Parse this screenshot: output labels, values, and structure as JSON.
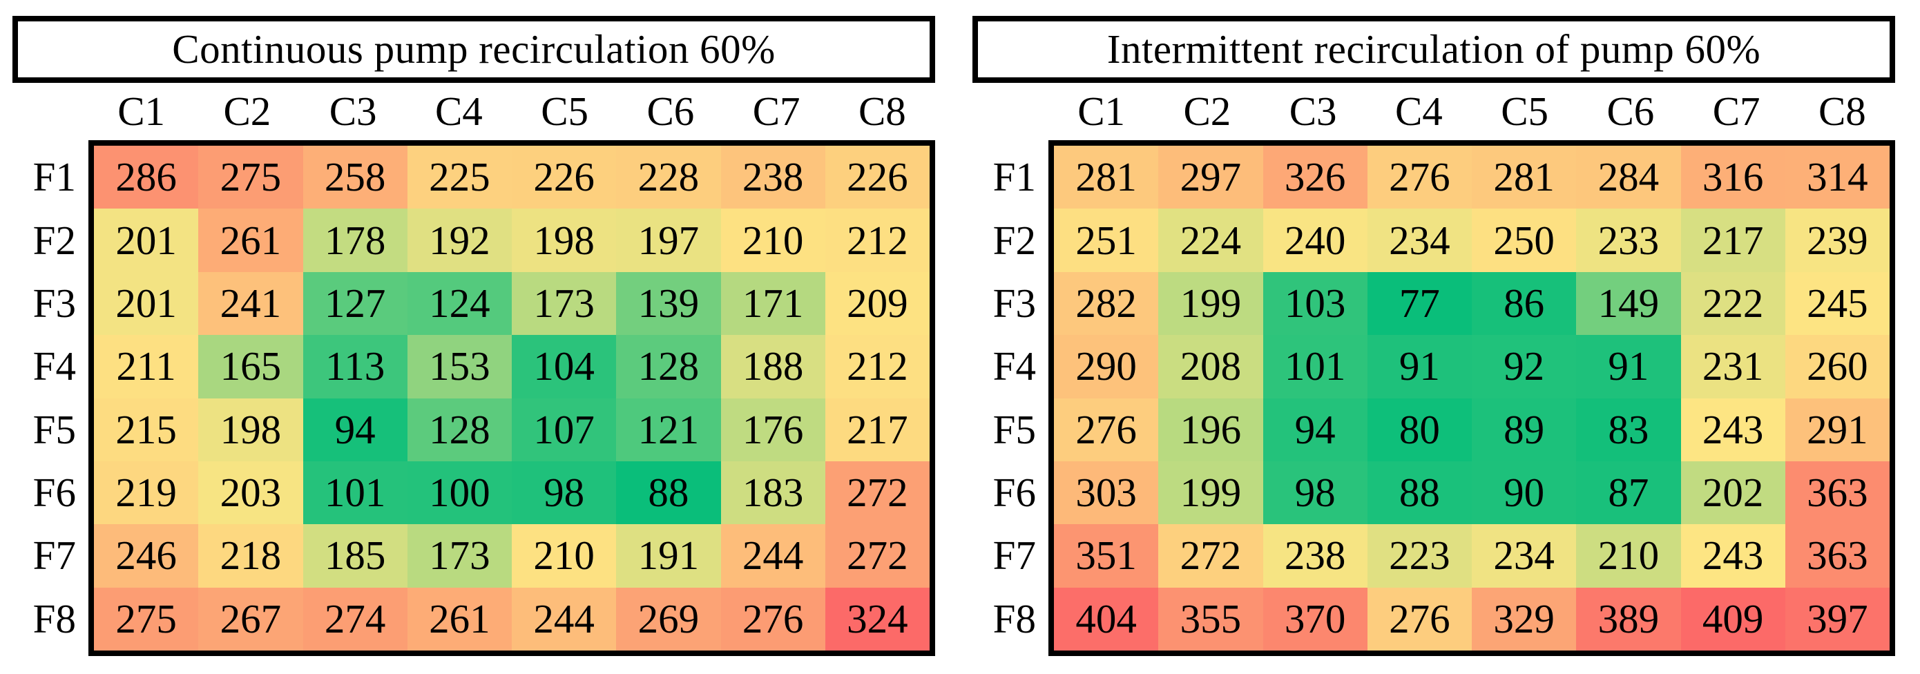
{
  "page": {
    "background": "#ffffff",
    "text_color": "#000000",
    "border_color": "#000000"
  },
  "chart_data": [
    {
      "type": "heatmap",
      "title": "Continuous pump recirculation 60%",
      "columns": [
        "C1",
        "C2",
        "C3",
        "C4",
        "C5",
        "C6",
        "C7",
        "C8"
      ],
      "rows": [
        "F1",
        "F2",
        "F3",
        "F4",
        "F5",
        "F6",
        "F7",
        "F8"
      ],
      "values": [
        [
          286,
          275,
          258,
          225,
          226,
          228,
          238,
          226
        ],
        [
          201,
          261,
          178,
          192,
          198,
          197,
          210,
          212
        ],
        [
          201,
          241,
          127,
          124,
          173,
          139,
          171,
          209
        ],
        [
          211,
          165,
          113,
          153,
          104,
          128,
          188,
          212
        ],
        [
          215,
          198,
          94,
          128,
          107,
          121,
          176,
          217
        ],
        [
          219,
          203,
          101,
          100,
          98,
          88,
          183,
          272
        ],
        [
          246,
          218,
          185,
          173,
          210,
          191,
          244,
          272
        ],
        [
          275,
          267,
          274,
          261,
          244,
          269,
          276,
          324
        ]
      ],
      "color_scale": {
        "min_value": 88,
        "mid_value": 206,
        "max_value": 324,
        "min_color": "#0abe7a",
        "mid_color": "#fde583",
        "max_color": "#fc6a68"
      },
      "legend_position": "none",
      "grid": false
    },
    {
      "type": "heatmap",
      "title": "Intermittent recirculation of pump 60%",
      "columns": [
        "C1",
        "C2",
        "C3",
        "C4",
        "C5",
        "C6",
        "C7",
        "C8"
      ],
      "rows": [
        "F1",
        "F2",
        "F3",
        "F4",
        "F5",
        "F6",
        "F7",
        "F8"
      ],
      "values": [
        [
          281,
          297,
          326,
          276,
          281,
          284,
          316,
          314
        ],
        [
          251,
          224,
          240,
          234,
          250,
          233,
          217,
          239
        ],
        [
          282,
          199,
          103,
          77,
          86,
          149,
          222,
          245
        ],
        [
          290,
          208,
          101,
          91,
          92,
          91,
          231,
          260
        ],
        [
          276,
          196,
          94,
          80,
          89,
          83,
          243,
          291
        ],
        [
          303,
          199,
          98,
          88,
          90,
          87,
          202,
          363
        ],
        [
          351,
          272,
          238,
          223,
          234,
          210,
          243,
          363
        ],
        [
          404,
          355,
          370,
          276,
          329,
          389,
          409,
          397
        ]
      ],
      "color_scale": {
        "min_value": 77,
        "mid_value": 243,
        "max_value": 409,
        "min_color": "#0abe7a",
        "mid_color": "#fde583",
        "max_color": "#fc6a68"
      },
      "legend_position": "none",
      "grid": false
    }
  ]
}
